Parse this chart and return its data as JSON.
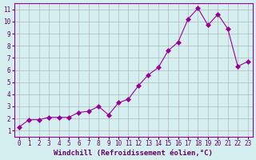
{
  "x": [
    0,
    1,
    2,
    3,
    4,
    5,
    6,
    7,
    8,
    9,
    10,
    11,
    12,
    13,
    14,
    15,
    16,
    17,
    18,
    19,
    20,
    21,
    22,
    23
  ],
  "y": [
    1.3,
    1.9,
    1.9,
    2.1,
    2.1,
    2.1,
    2.5,
    2.6,
    3.0,
    2.3,
    3.3,
    3.6,
    4.7,
    5.6,
    6.2,
    7.6,
    8.3,
    10.2,
    11.1,
    9.7,
    10.6,
    9.4,
    6.3,
    6.7
  ],
  "line_color": "#990099",
  "marker": "D",
  "marker_size": 3,
  "bg_color": "#d5eef0",
  "grid_color": "#aaaaaa",
  "xlabel": "Windchill (Refroidissement éolien,°C)",
  "xlabel_color": "#660066",
  "tick_color": "#660066",
  "xlim": [
    -0.5,
    23.5
  ],
  "ylim": [
    0.5,
    11.5
  ],
  "yticks": [
    1,
    2,
    3,
    4,
    5,
    6,
    7,
    8,
    9,
    10,
    11
  ],
  "xticks": [
    0,
    1,
    2,
    3,
    4,
    5,
    6,
    7,
    8,
    9,
    10,
    11,
    12,
    13,
    14,
    15,
    16,
    17,
    18,
    19,
    20,
    21,
    22,
    23
  ],
  "xtick_labels": [
    "0",
    "1",
    "2",
    "3",
    "4",
    "5",
    "6",
    "7",
    "8",
    "9",
    "10",
    "11",
    "12",
    "13",
    "14",
    "15",
    "16",
    "17",
    "18",
    "19",
    "20",
    "21",
    "22",
    "23"
  ],
  "ytick_labels": [
    "1",
    "2",
    "3",
    "4",
    "5",
    "6",
    "7",
    "8",
    "9",
    "10",
    "11"
  ],
  "font_size_ticks": 5.5,
  "font_size_xlabel": 6.5
}
